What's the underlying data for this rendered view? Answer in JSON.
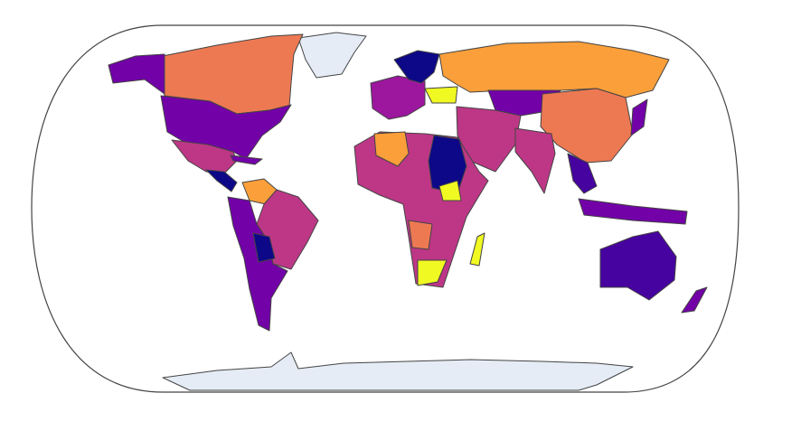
{
  "chart_data": {
    "type": "choropleth",
    "projection": "natural earth",
    "colorscale": [
      "#0d0887",
      "#46039f",
      "#7201a8",
      "#9c179e",
      "#bd3786",
      "#d8576b",
      "#ed7953",
      "#fb9f3a",
      "#fdca26",
      "#f0f921"
    ],
    "missing_color": "#e5ecf6",
    "border_color": "#444444"
  }
}
